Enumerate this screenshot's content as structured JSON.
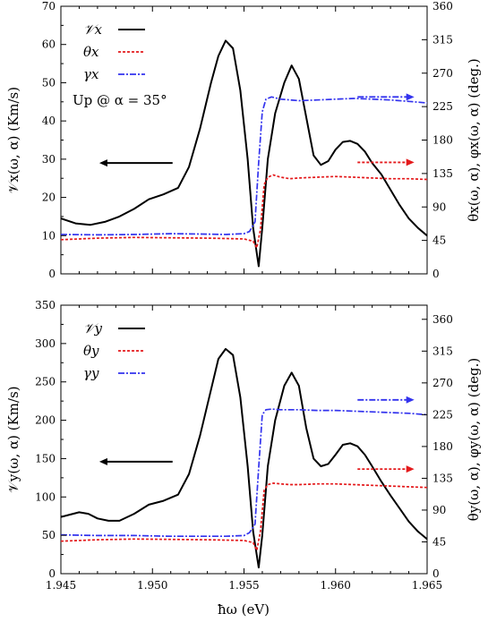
{
  "figure": {
    "xlabel": "ħω (eV)"
  },
  "chart_data": [
    {
      "type": "line",
      "panel": "top",
      "ylabel_left": "𝒱x(ω, α) (Km/s)",
      "ylabel_right": "θx(ω, α),  φx(ω, α) (deg.)",
      "annotation": "Up @ α = 35°",
      "xlim": [
        1.945,
        1.965
      ],
      "ylim_left": [
        0,
        70
      ],
      "ylim_right": [
        0,
        360
      ],
      "x_ticks": [
        "1.945",
        "1.950",
        "1.955",
        "1.960",
        "1.965"
      ],
      "y_ticks_left": [
        "0",
        "10",
        "20",
        "30",
        "40",
        "50",
        "60",
        "70"
      ],
      "y_ticks_right": [
        "0",
        "45",
        "90",
        "135",
        "180",
        "225",
        "270",
        "315",
        "360"
      ],
      "legend": [
        "𝒱x",
        "θx",
        "γx"
      ],
      "series": [
        {
          "name": "𝒱x",
          "axis": "left",
          "color": "#000000",
          "style": "solid",
          "x": [
            1.945,
            1.9458,
            1.9466,
            1.9474,
            1.9482,
            1.949,
            1.9498,
            1.9506,
            1.9514,
            1.952,
            1.9526,
            1.9532,
            1.9536,
            1.954,
            1.9544,
            1.9548,
            1.9552,
            1.9555,
            1.9558,
            1.956,
            1.9563,
            1.9567,
            1.9572,
            1.9576,
            1.958,
            1.9584,
            1.9588,
            1.9592,
            1.9596,
            1.96,
            1.9604,
            1.9608,
            1.9612,
            1.9616,
            1.962,
            1.9625,
            1.963,
            1.9635,
            1.964,
            1.9645,
            1.965
          ],
          "y": [
            14.5,
            13.2,
            12.8,
            13.6,
            15,
            17,
            19.5,
            20.8,
            22.5,
            28,
            38,
            50,
            57,
            61,
            59,
            48,
            30,
            12,
            2,
            12,
            30,
            42,
            50,
            54.5,
            51,
            41,
            31,
            28.5,
            29.5,
            32.5,
            34.5,
            34.8,
            34,
            32,
            29,
            26,
            22,
            18,
            14.5,
            12,
            10
          ]
        },
        {
          "name": "θx",
          "axis": "right",
          "color": "#e41a1c",
          "style": "dotted",
          "x": [
            1.945,
            1.947,
            1.949,
            1.951,
            1.953,
            1.954,
            1.955,
            1.9555,
            1.9557,
            1.9559,
            1.9561,
            1.9563,
            1.9566,
            1.957,
            1.9575,
            1.958,
            1.959,
            1.96,
            1.961,
            1.962,
            1.963,
            1.964,
            1.965
          ],
          "y": [
            46,
            48,
            49,
            48.5,
            48,
            47.5,
            47,
            44,
            35,
            60,
            120,
            130,
            133,
            130,
            128,
            129,
            130,
            131,
            130,
            129,
            128,
            128,
            127
          ]
        },
        {
          "name": "γx",
          "axis": "right",
          "color": "#3333ee",
          "style": "dashdot",
          "x": [
            1.945,
            1.947,
            1.949,
            1.951,
            1.953,
            1.954,
            1.955,
            1.9553,
            1.9556,
            1.9558,
            1.956,
            1.9562,
            1.9565,
            1.957,
            1.958,
            1.959,
            1.96,
            1.961,
            1.962,
            1.963,
            1.964,
            1.965
          ],
          "y": [
            53,
            52.5,
            53,
            54,
            53.5,
            53,
            54,
            57,
            70,
            150,
            218,
            235,
            238,
            235,
            233,
            234,
            235,
            236,
            235,
            234,
            232,
            230
          ]
        }
      ],
      "arrows": [
        {
          "color": "#000000",
          "style": "solid",
          "direction": "left",
          "x_from": 1.9511,
          "x_to": 1.9471,
          "y": 29,
          "axis": "left"
        },
        {
          "color": "#3333ee",
          "style": "dashdot",
          "direction": "right",
          "x_from": 1.9612,
          "x_to": 1.9643,
          "y": 238,
          "axis": "right"
        },
        {
          "color": "#e41a1c",
          "style": "dotted",
          "direction": "right",
          "x_from": 1.9612,
          "x_to": 1.9643,
          "y": 150,
          "axis": "right"
        }
      ]
    },
    {
      "type": "line",
      "panel": "bottom",
      "ylabel_left": "𝒱y(ω, α) (Km/s)",
      "ylabel_right": "θy(ω, α),  φy(ω, α) (deg.)",
      "xlim": [
        1.945,
        1.965
      ],
      "ylim_left": [
        0,
        350
      ],
      "ylim_right": [
        0,
        380
      ],
      "x_ticks": [
        "1.945",
        "1.950",
        "1.955",
        "1.960",
        "1.965"
      ],
      "y_ticks_left": [
        "0",
        "50",
        "100",
        "150",
        "200",
        "250",
        "300",
        "350"
      ],
      "y_ticks_right": [
        "0",
        "45",
        "90",
        "135",
        "180",
        "225",
        "270",
        "315",
        "360"
      ],
      "legend": [
        "𝒱y",
        "θy",
        "γy"
      ],
      "series": [
        {
          "name": "𝒱y",
          "axis": "left",
          "color": "#000000",
          "style": "solid",
          "x": [
            1.945,
            1.9455,
            1.946,
            1.9465,
            1.947,
            1.9476,
            1.9482,
            1.949,
            1.9498,
            1.9506,
            1.9514,
            1.952,
            1.9526,
            1.9532,
            1.9536,
            1.954,
            1.9544,
            1.9548,
            1.9552,
            1.9555,
            1.9558,
            1.956,
            1.9563,
            1.9567,
            1.9572,
            1.9576,
            1.958,
            1.9584,
            1.9588,
            1.9592,
            1.9596,
            1.96,
            1.9604,
            1.9608,
            1.9612,
            1.9616,
            1.962,
            1.9625,
            1.963,
            1.9635,
            1.964,
            1.9645,
            1.965
          ],
          "y": [
            74,
            77,
            80,
            78,
            72,
            69,
            69,
            78,
            90,
            95,
            103,
            130,
            180,
            240,
            280,
            293,
            285,
            230,
            140,
            55,
            8,
            50,
            140,
            200,
            245,
            262,
            245,
            190,
            150,
            140,
            143,
            155,
            168,
            170,
            166,
            155,
            140,
            120,
            102,
            85,
            68,
            55,
            45
          ]
        },
        {
          "name": "θy",
          "axis": "right",
          "color": "#e41a1c",
          "style": "dotted",
          "x": [
            1.945,
            1.947,
            1.949,
            1.951,
            1.953,
            1.954,
            1.955,
            1.9555,
            1.9557,
            1.9559,
            1.9561,
            1.9563,
            1.9566,
            1.957,
            1.9575,
            1.958,
            1.959,
            1.96,
            1.961,
            1.962,
            1.963,
            1.964,
            1.965
          ],
          "y": [
            46,
            48,
            49,
            48.5,
            48,
            47.5,
            47,
            44,
            33,
            60,
            118,
            126,
            128,
            127,
            126,
            126,
            127,
            127,
            126,
            125,
            124,
            123,
            122
          ]
        },
        {
          "name": "γy",
          "axis": "right",
          "color": "#3333ee",
          "style": "dashdot",
          "x": [
            1.945,
            1.947,
            1.949,
            1.951,
            1.953,
            1.954,
            1.955,
            1.9553,
            1.9556,
            1.9558,
            1.956,
            1.9562,
            1.9565,
            1.957,
            1.958,
            1.959,
            1.96,
            1.961,
            1.962,
            1.963,
            1.964,
            1.965
          ],
          "y": [
            55,
            54,
            54,
            53,
            53,
            53,
            54,
            58,
            70,
            150,
            225,
            232,
            233,
            232,
            232,
            231,
            231,
            230,
            229,
            228,
            227,
            225
          ]
        }
      ],
      "arrows": [
        {
          "color": "#000000",
          "style": "solid",
          "direction": "left",
          "x_from": 1.9511,
          "x_to": 1.9471,
          "y": 146,
          "axis": "left"
        },
        {
          "color": "#3333ee",
          "style": "dashdot",
          "direction": "right",
          "x_from": 1.9612,
          "x_to": 1.9643,
          "y": 246,
          "axis": "right"
        },
        {
          "color": "#e41a1c",
          "style": "dotted",
          "direction": "right",
          "x_from": 1.9612,
          "x_to": 1.9643,
          "y": 148,
          "axis": "right"
        }
      ]
    }
  ]
}
